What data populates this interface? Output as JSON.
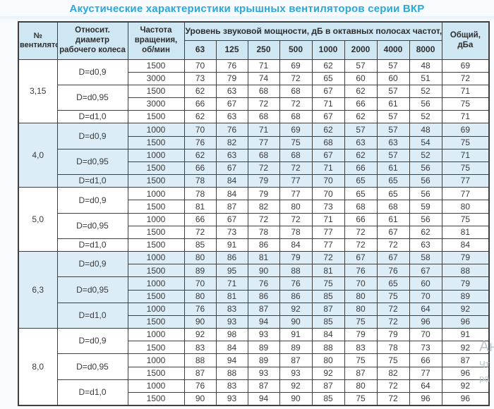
{
  "page": {
    "title": "Акустические характеристики крышных вентиляторов серии ВКР",
    "title_color": "#2ba7da",
    "watermark_lines": [
      "Ан",
      "Чт",
      "ра"
    ]
  },
  "table": {
    "header": {
      "fan_no": "№ вентилятора",
      "diameter": "Относит. диаметр рабочего колеса",
      "speed": "Частота вращения, об/мин",
      "levels_group": "Уровень звуковой мощности, дБ в октавных полосах частот, Гц",
      "total": "Общий, дБа"
    },
    "freq_columns": [
      "63",
      "125",
      "250",
      "500",
      "1000",
      "2000",
      "4000",
      "8000"
    ],
    "colors": {
      "header_bg": "#cfe6f3",
      "shaded_row_bg": "#dcedf8",
      "border": "#3f3f3f",
      "title": "#2ba7da"
    },
    "groups": [
      {
        "fan": "3,15",
        "shaded": false,
        "blocks": [
          {
            "diameter": "D=d0,9",
            "rows": [
              {
                "speed": "1500",
                "levels": [
                  70,
                  76,
                  71,
                  69,
                  62,
                  57,
                  57,
                  48
                ],
                "total": 69
              },
              {
                "speed": "3000",
                "levels": [
                  73,
                  79,
                  74,
                  72,
                  65,
                  60,
                  60,
                  51
                ],
                "total": 72
              }
            ]
          },
          {
            "diameter": "D=d0,95",
            "rows": [
              {
                "speed": "1500",
                "levels": [
                  62,
                  63,
                  68,
                  68,
                  67,
                  62,
                  57,
                  52
                ],
                "total": 71
              },
              {
                "speed": "3000",
                "levels": [
                  66,
                  67,
                  72,
                  72,
                  71,
                  66,
                  61,
                  56
                ],
                "total": 75
              }
            ]
          },
          {
            "diameter": "D=d1,0",
            "rows": [
              {
                "speed": "1500",
                "levels": [
                  62,
                  63,
                  68,
                  68,
                  67,
                  62,
                  57,
                  52
                ],
                "total": 71
              }
            ]
          }
        ]
      },
      {
        "fan": "4,0",
        "shaded": true,
        "blocks": [
          {
            "diameter": "D=d0,9",
            "rows": [
              {
                "speed": "1000",
                "levels": [
                  70,
                  76,
                  71,
                  69,
                  62,
                  57,
                  57,
                  48
                ],
                "total": 69
              },
              {
                "speed": "1500",
                "levels": [
                  76,
                  82,
                  77,
                  75,
                  68,
                  63,
                  63,
                  54
                ],
                "total": 75
              }
            ]
          },
          {
            "diameter": "D=d0,95",
            "rows": [
              {
                "speed": "1000",
                "levels": [
                  62,
                  63,
                  68,
                  68,
                  67,
                  62,
                  57,
                  52
                ],
                "total": 71
              },
              {
                "speed": "1500",
                "levels": [
                  66,
                  67,
                  72,
                  72,
                  71,
                  66,
                  61,
                  56
                ],
                "total": 75
              }
            ]
          },
          {
            "diameter": "D=d1,0",
            "rows": [
              {
                "speed": "1500",
                "levels": [
                  78,
                  84,
                  79,
                  77,
                  70,
                  65,
                  65,
                  56
                ],
                "total": 77
              }
            ]
          }
        ]
      },
      {
        "fan": "5,0",
        "shaded": false,
        "blocks": [
          {
            "diameter": "D=d0,9",
            "rows": [
              {
                "speed": "1000",
                "levels": [
                  78,
                  84,
                  79,
                  77,
                  70,
                  65,
                  65,
                  56
                ],
                "total": 77
              },
              {
                "speed": "1500",
                "levels": [
                  81,
                  87,
                  82,
                  80,
                  73,
                  68,
                  68,
                  59
                ],
                "total": 80
              }
            ]
          },
          {
            "diameter": "D=d0,95",
            "rows": [
              {
                "speed": "1000",
                "levels": [
                  66,
                  67,
                  72,
                  72,
                  71,
                  66,
                  61,
                  56
                ],
                "total": 75
              },
              {
                "speed": "1500",
                "levels": [
                  72,
                  73,
                  78,
                  78,
                  77,
                  72,
                  67,
                  62
                ],
                "total": 81
              }
            ]
          },
          {
            "diameter": "D=d1,0",
            "rows": [
              {
                "speed": "1500",
                "levels": [
                  85,
                  91,
                  86,
                  84,
                  77,
                  72,
                  72,
                  63
                ],
                "total": 84
              }
            ]
          }
        ]
      },
      {
        "fan": "6,3",
        "shaded": true,
        "blocks": [
          {
            "diameter": "D=d0,9",
            "rows": [
              {
                "speed": "1000",
                "levels": [
                  80,
                  86,
                  81,
                  79,
                  72,
                  67,
                  67,
                  58
                ],
                "total": 79
              },
              {
                "speed": "1500",
                "levels": [
                  89,
                  95,
                  90,
                  88,
                  81,
                  76,
                  76,
                  67
                ],
                "total": 88
              }
            ]
          },
          {
            "diameter": "D=d0,95",
            "rows": [
              {
                "speed": "1000",
                "levels": [
                  70,
                  71,
                  76,
                  76,
                  75,
                  70,
                  65,
                  60
                ],
                "total": 79
              },
              {
                "speed": "1500",
                "levels": [
                  80,
                  81,
                  86,
                  86,
                  85,
                  80,
                  75,
                  70
                ],
                "total": 89
              }
            ]
          },
          {
            "diameter": "D=d1,0",
            "rows": [
              {
                "speed": "1000",
                "levels": [
                  76,
                  83,
                  87,
                  92,
                  87,
                  80,
                  72,
                  64
                ],
                "total": 92
              },
              {
                "speed": "1500",
                "levels": [
                  90,
                  93,
                  94,
                  90,
                  85,
                  75,
                  72,
                  96
                ],
                "total": 96
              }
            ]
          }
        ]
      },
      {
        "fan": "8,0",
        "shaded": false,
        "blocks": [
          {
            "diameter": "D=d0,9",
            "rows": [
              {
                "speed": "1000",
                "levels": [
                  92,
                  98,
                  93,
                  91,
                  84,
                  79,
                  79,
                  70
                ],
                "total": 91
              },
              {
                "speed": "1500",
                "levels": [
                  83,
                  84,
                  89,
                  89,
                  88,
                  83,
                  78,
                  73
                ],
                "total": 92
              }
            ]
          },
          {
            "diameter": "D=d0,95",
            "rows": [
              {
                "speed": "1000",
                "levels": [
                  88,
                  94,
                  89,
                  87,
                  80,
                  75,
                  75,
                  66
                ],
                "total": 87
              },
              {
                "speed": "1500",
                "levels": [
                  87,
                  88,
                  93,
                  93,
                  92,
                  87,
                  82,
                  77
                ],
                "total": 96
              }
            ]
          },
          {
            "diameter": "D=d1,0",
            "rows": [
              {
                "speed": "1000",
                "levels": [
                  76,
                  83,
                  87,
                  92,
                  87,
                  80,
                  72,
                  64
                ],
                "total": 92
              },
              {
                "speed": "1500",
                "levels": [
                  90,
                  93,
                  94,
                  90,
                  85,
                  75,
                  72,
                  96
                ],
                "total": 96
              }
            ]
          }
        ]
      }
    ]
  }
}
